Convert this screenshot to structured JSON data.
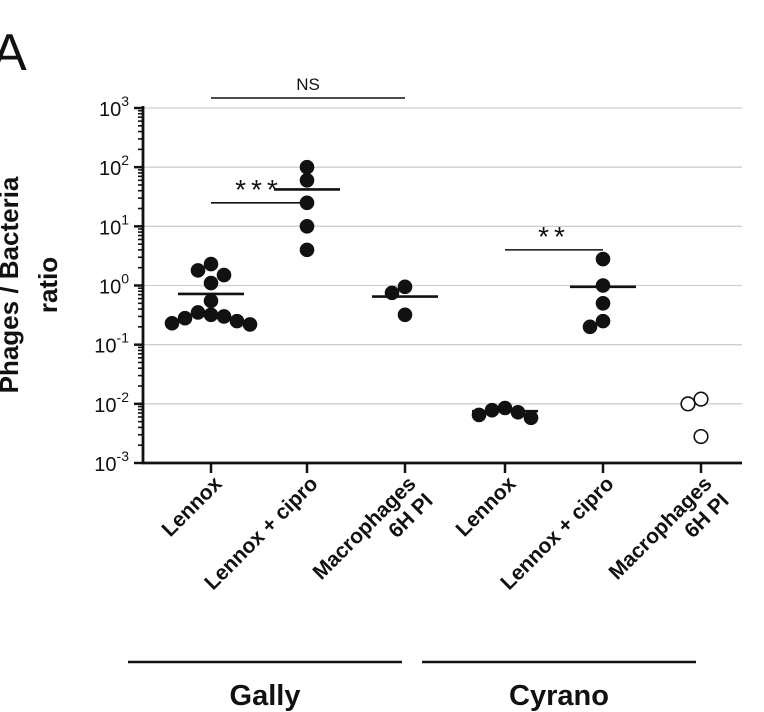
{
  "panel_label": "A",
  "chart_data": {
    "type": "scatter",
    "ylabel_line1": "Phages / Bacteria",
    "ylabel_line2": "ratio",
    "yscale": "log",
    "ylim": [
      0.001,
      1000
    ],
    "yticks": [
      {
        "value": 1000,
        "base": "10",
        "exp": "3"
      },
      {
        "value": 100,
        "base": "10",
        "exp": "2"
      },
      {
        "value": 10,
        "base": "10",
        "exp": "1"
      },
      {
        "value": 1,
        "base": "10",
        "exp": "0"
      },
      {
        "value": 0.1,
        "base": "10",
        "exp": "-1"
      },
      {
        "value": 0.01,
        "base": "10",
        "exp": "-2"
      },
      {
        "value": 0.001,
        "base": "10",
        "exp": "-3"
      }
    ],
    "grid": "horizontal",
    "categories": [
      {
        "line1": "Lennox",
        "line2": ""
      },
      {
        "line1": "Lennox + cipro",
        "line2": ""
      },
      {
        "line1": "Macrophages",
        "line2": "6H PI"
      },
      {
        "line1": "Lennox",
        "line2": ""
      },
      {
        "line1": "Lennox + cipro",
        "line2": ""
      },
      {
        "line1": "Macrophages",
        "line2": "6H PI"
      }
    ],
    "groups": [
      {
        "label": "Gally",
        "categories": [
          0,
          1,
          2
        ]
      },
      {
        "label": "Cyrano",
        "categories": [
          3,
          4,
          5
        ]
      }
    ],
    "series": [
      {
        "category": 0,
        "marker": "filled",
        "mean": 0.72,
        "values": [
          2.3,
          1.8,
          1.5,
          1.1,
          0.55,
          0.35,
          0.32,
          0.3,
          0.28,
          0.25,
          0.23,
          0.22
        ]
      },
      {
        "category": 1,
        "marker": "filled",
        "mean": 42,
        "values": [
          100,
          60,
          25,
          10,
          4
        ]
      },
      {
        "category": 2,
        "marker": "filled",
        "mean": 0.65,
        "values": [
          0.95,
          0.75,
          0.32
        ]
      },
      {
        "category": 3,
        "marker": "filled",
        "mean": 0.0075,
        "values": [
          0.0085,
          0.0078,
          0.0072,
          0.0065,
          0.0058
        ]
      },
      {
        "category": 4,
        "marker": "filled",
        "mean": 0.95,
        "values": [
          2.8,
          1.0,
          0.5,
          0.25,
          0.2
        ]
      },
      {
        "category": 5,
        "marker": "open",
        "mean": null,
        "values": [
          0.012,
          0.01,
          0.0028
        ]
      }
    ],
    "significance": [
      {
        "from": 0,
        "to": 1,
        "label": "***",
        "yvalue": 25
      },
      {
        "from": 0,
        "to": 2,
        "label": "NS",
        "yvalue": 1000
      },
      {
        "from": 3,
        "to": 4,
        "label": "**",
        "yvalue": 4
      }
    ]
  }
}
